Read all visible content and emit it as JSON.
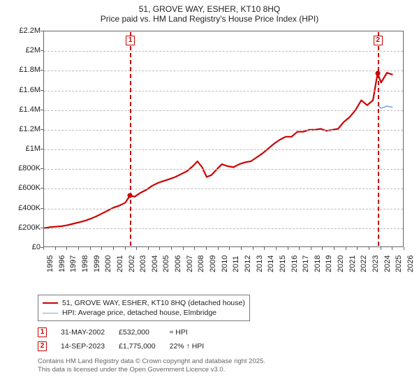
{
  "title": {
    "line1": "51, GROVE WAY, ESHER, KT10 8HQ",
    "line2": "Price paid vs. HM Land Registry's House Price Index (HPI)"
  },
  "chart": {
    "type": "line",
    "background_color": "#ffffff",
    "grid_color": "#bbbbbb",
    "axis_color": "#666666",
    "xlim": [
      1995,
      2026
    ],
    "ylim": [
      0,
      2200000
    ],
    "ytick_step": 200000,
    "yticks": [
      "£0",
      "£200K",
      "£400K",
      "£600K",
      "£800K",
      "£1M",
      "£1.2M",
      "£1.4M",
      "£1.6M",
      "£1.8M",
      "£2M",
      "£2.2M"
    ],
    "xticks": [
      1995,
      1996,
      1997,
      1998,
      1999,
      2000,
      2001,
      2002,
      2003,
      2004,
      2005,
      2006,
      2007,
      2008,
      2009,
      2010,
      2011,
      2012,
      2013,
      2014,
      2015,
      2016,
      2017,
      2018,
      2019,
      2020,
      2021,
      2022,
      2023,
      2024,
      2025,
      2026
    ],
    "series": [
      {
        "name": "price_paid",
        "label": "51, GROVE WAY, ESHER, KT10 8HQ (detached house)",
        "color": "#cc0000",
        "line_width": 2.2,
        "data": [
          [
            1995.0,
            200000
          ],
          [
            1995.5,
            210000
          ],
          [
            1996.0,
            215000
          ],
          [
            1996.5,
            220000
          ],
          [
            1997.0,
            230000
          ],
          [
            1997.5,
            245000
          ],
          [
            1998.0,
            260000
          ],
          [
            1998.5,
            275000
          ],
          [
            1999.0,
            295000
          ],
          [
            1999.5,
            320000
          ],
          [
            2000.0,
            350000
          ],
          [
            2000.5,
            380000
          ],
          [
            2001.0,
            410000
          ],
          [
            2001.5,
            430000
          ],
          [
            2002.0,
            460000
          ],
          [
            2002.4,
            532000
          ],
          [
            2002.8,
            520000
          ],
          [
            2003.3,
            560000
          ],
          [
            2003.8,
            590000
          ],
          [
            2004.3,
            630000
          ],
          [
            2004.8,
            660000
          ],
          [
            2005.3,
            680000
          ],
          [
            2005.8,
            700000
          ],
          [
            2006.3,
            720000
          ],
          [
            2006.8,
            750000
          ],
          [
            2007.3,
            780000
          ],
          [
            2007.8,
            830000
          ],
          [
            2008.2,
            880000
          ],
          [
            2008.6,
            820000
          ],
          [
            2009.0,
            720000
          ],
          [
            2009.4,
            740000
          ],
          [
            2009.8,
            790000
          ],
          [
            2010.3,
            850000
          ],
          [
            2010.8,
            830000
          ],
          [
            2011.3,
            820000
          ],
          [
            2011.8,
            850000
          ],
          [
            2012.3,
            870000
          ],
          [
            2012.8,
            880000
          ],
          [
            2013.3,
            920000
          ],
          [
            2013.8,
            960000
          ],
          [
            2014.3,
            1010000
          ],
          [
            2014.8,
            1060000
          ],
          [
            2015.3,
            1100000
          ],
          [
            2015.8,
            1130000
          ],
          [
            2016.3,
            1130000
          ],
          [
            2016.8,
            1180000
          ],
          [
            2017.3,
            1180000
          ],
          [
            2017.8,
            1200000
          ],
          [
            2018.3,
            1200000
          ],
          [
            2018.8,
            1210000
          ],
          [
            2019.3,
            1190000
          ],
          [
            2019.8,
            1200000
          ],
          [
            2020.3,
            1210000
          ],
          [
            2020.8,
            1280000
          ],
          [
            2021.3,
            1330000
          ],
          [
            2021.8,
            1400000
          ],
          [
            2022.3,
            1500000
          ],
          [
            2022.8,
            1450000
          ],
          [
            2023.3,
            1500000
          ],
          [
            2023.7,
            1775000
          ],
          [
            2024.0,
            1680000
          ],
          [
            2024.5,
            1780000
          ],
          [
            2025.0,
            1760000
          ]
        ]
      },
      {
        "name": "hpi",
        "label": "HPI: Average price, detached house, Elmbridge",
        "color": "#7da7d9",
        "line_width": 1.6,
        "data": [
          [
            2023.7,
            1450000
          ],
          [
            2024.0,
            1420000
          ],
          [
            2024.5,
            1440000
          ],
          [
            2025.0,
            1430000
          ]
        ]
      }
    ],
    "markers": [
      {
        "x": 2002.4,
        "y": 532000,
        "color": "#cc0000",
        "size": 7
      },
      {
        "x": 2023.7,
        "y": 1775000,
        "color": "#cc0000",
        "size": 7
      }
    ],
    "vguides": [
      {
        "x": 2002.4,
        "color": "#cc0000",
        "callout": "1"
      },
      {
        "x": 2023.7,
        "color": "#cc0000",
        "callout": "2"
      }
    ]
  },
  "sales": [
    {
      "n": "1",
      "date": "31-MAY-2002",
      "price": "£532,000",
      "delta": "≈ HPI"
    },
    {
      "n": "2",
      "date": "14-SEP-2023",
      "price": "£1,775,000",
      "delta": "22% ↑ HPI"
    }
  ],
  "copyright": {
    "line1": "Contains HM Land Registry data © Crown copyright and database right 2025.",
    "line2": "This data is licensed under the Open Government Licence v3.0."
  }
}
